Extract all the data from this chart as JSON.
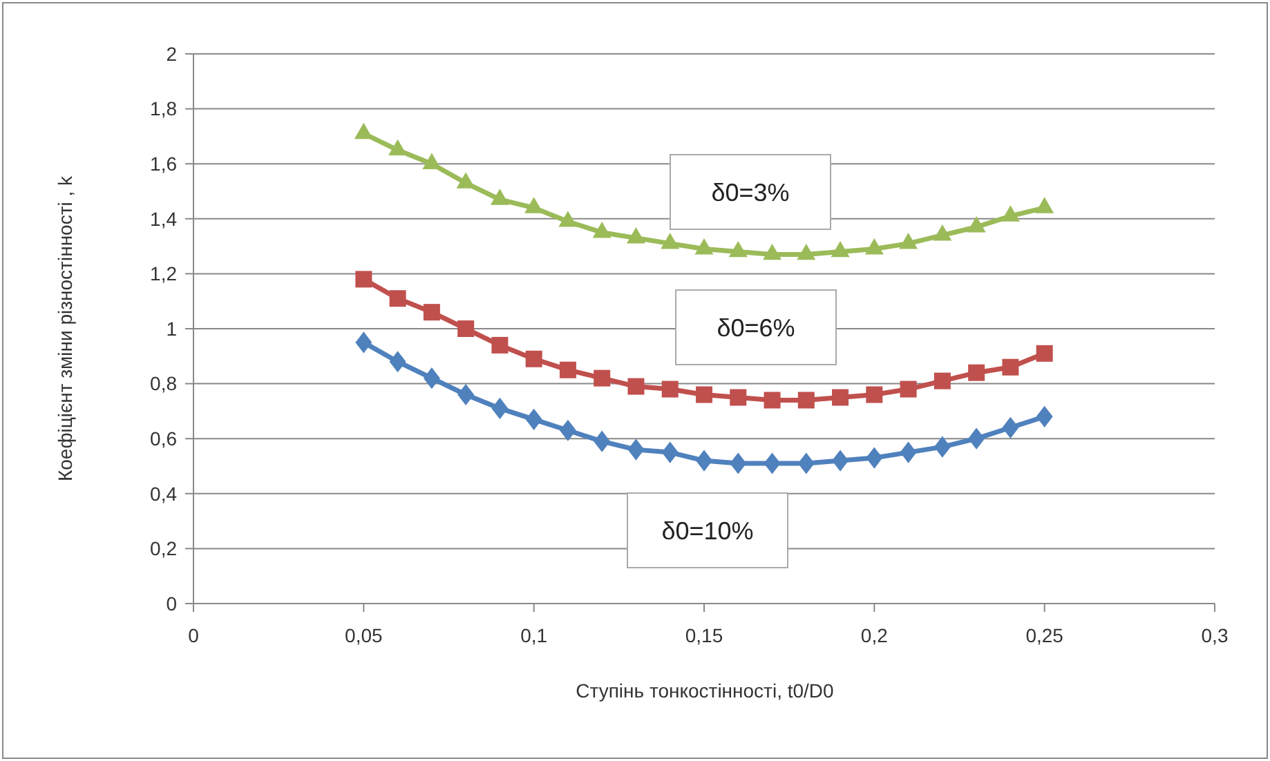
{
  "chart_data": {
    "type": "line",
    "xlabel": "Ступінь тонкостінності, t0/D0",
    "ylabel": "Коефіцієнт зміни різностінності , k",
    "x": [
      0.05,
      0.06,
      0.07,
      0.08,
      0.09,
      0.1,
      0.11,
      0.12,
      0.13,
      0.14,
      0.15,
      0.16,
      0.17,
      0.18,
      0.19,
      0.2,
      0.21,
      0.22,
      0.23,
      0.24,
      0.25
    ],
    "series": [
      {
        "name": "δ0=3%",
        "color": "#9bbb59",
        "marker": "triangle",
        "values": [
          1.71,
          1.65,
          1.6,
          1.53,
          1.47,
          1.44,
          1.39,
          1.35,
          1.33,
          1.31,
          1.29,
          1.28,
          1.27,
          1.27,
          1.28,
          1.29,
          1.31,
          1.34,
          1.37,
          1.41,
          1.44
        ]
      },
      {
        "name": "δ0=6%",
        "color": "#c0504d",
        "marker": "square",
        "values": [
          1.18,
          1.11,
          1.06,
          1.0,
          0.94,
          0.89,
          0.85,
          0.82,
          0.79,
          0.78,
          0.76,
          0.75,
          0.74,
          0.74,
          0.75,
          0.76,
          0.78,
          0.81,
          0.84,
          0.86,
          0.91
        ]
      },
      {
        "name": "δ0=10%",
        "color": "#4f81bd",
        "marker": "diamond",
        "values": [
          0.95,
          0.88,
          0.82,
          0.76,
          0.71,
          0.67,
          0.63,
          0.59,
          0.56,
          0.55,
          0.52,
          0.51,
          0.51,
          0.51,
          0.52,
          0.53,
          0.55,
          0.57,
          0.6,
          0.64,
          0.68
        ]
      }
    ],
    "xlim": [
      0,
      0.3
    ],
    "xticks": [
      0,
      {
        "value": 0.05,
        "label": "0,05"
      },
      {
        "value": 0.1,
        "label": "0,1"
      },
      {
        "value": 0.15,
        "label": "0,15"
      },
      {
        "value": 0.2,
        "label": "0,2"
      },
      {
        "value": 0.25,
        "label": "0,25"
      },
      {
        "value": 0.3,
        "label": "0,3"
      }
    ],
    "ylim": [
      0,
      2
    ],
    "yticks": [
      0,
      {
        "value": 0.2,
        "label": "0,2"
      },
      {
        "value": 0.4,
        "label": "0,4"
      },
      {
        "value": 0.6,
        "label": "0,6"
      },
      {
        "value": 0.8,
        "label": "0,8"
      },
      1,
      {
        "value": 1.2,
        "label": "1,2"
      },
      {
        "value": 1.4,
        "label": "1,4"
      },
      {
        "value": 1.6,
        "label": "1,6"
      },
      {
        "value": 1.8,
        "label": "1,8"
      },
      2
    ],
    "grid": "y",
    "legend": false,
    "line_style": "solid"
  }
}
